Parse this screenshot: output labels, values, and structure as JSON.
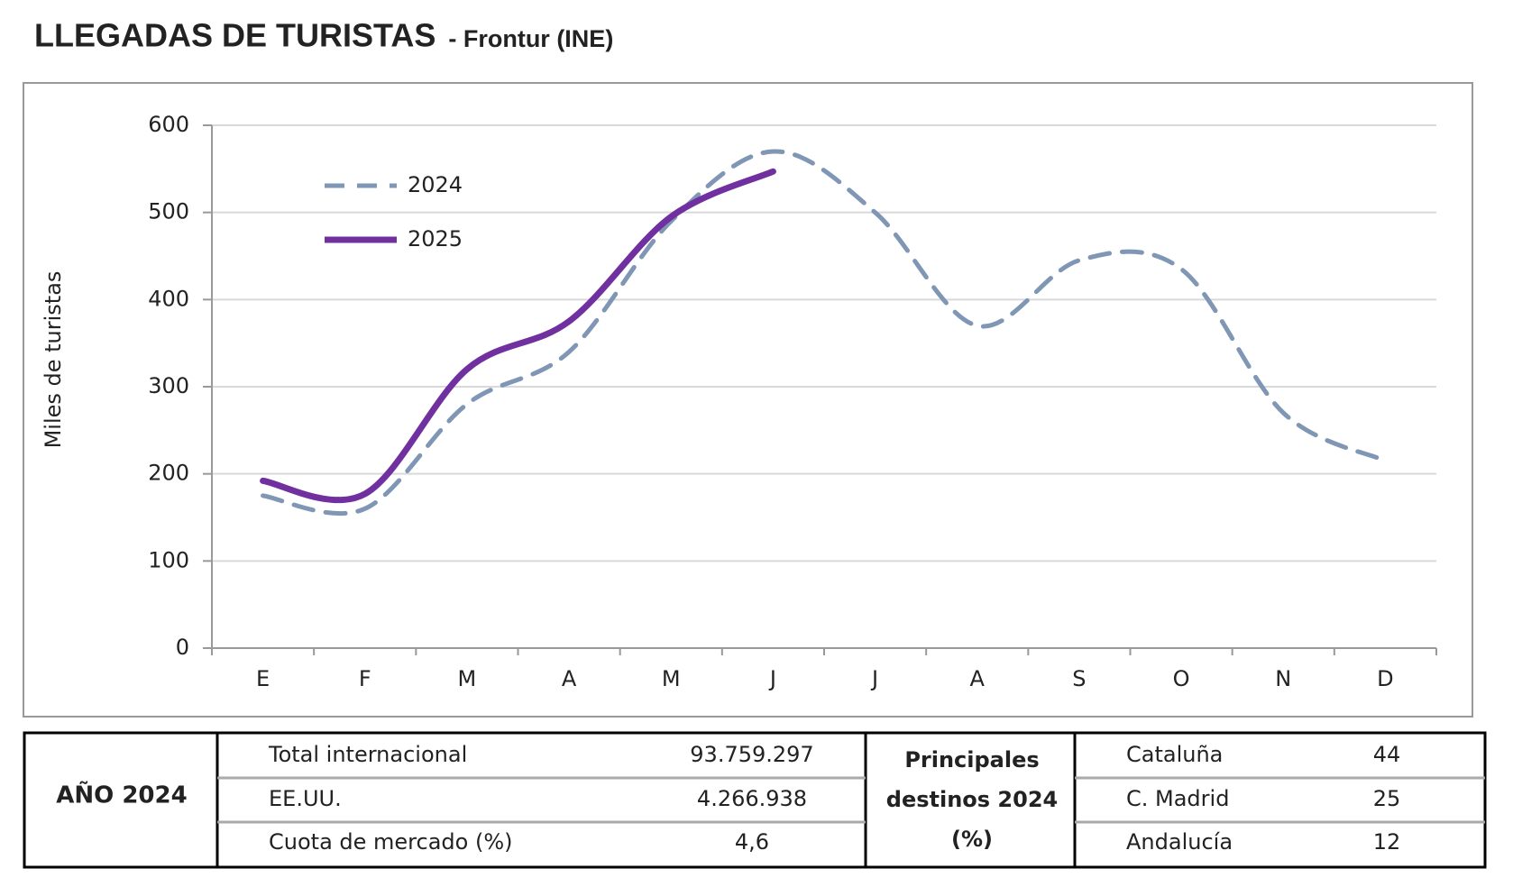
{
  "chart_data": {
    "type": "line",
    "title": "LLEGADAS DE TURISTAS",
    "subtitle": "- Frontur (INE)",
    "y_label": "Miles de turistas",
    "categories": [
      "E",
      "F",
      "M",
      "A",
      "M",
      "J",
      "J",
      "A",
      "S",
      "O",
      "N",
      "D"
    ],
    "series": [
      {
        "name": "2024",
        "color": "#7f96b5",
        "dashed": true,
        "values": [
          175,
          160,
          280,
          340,
          490,
          570,
          500,
          370,
          445,
          435,
          270,
          215
        ]
      },
      {
        "name": "2025",
        "color": "#7030a0",
        "dashed": false,
        "values": [
          192,
          177,
          320,
          375,
          495,
          547,
          null,
          null,
          null,
          null,
          null,
          null
        ]
      }
    ],
    "ylim": [
      0,
      600
    ],
    "yticks": [
      0,
      100,
      200,
      300,
      400,
      500,
      600
    ],
    "grid": true,
    "legend": "top-left"
  },
  "table": {
    "year_label": "AÑO 2024",
    "rows": [
      [
        "Total internacional",
        "93.759.297"
      ],
      [
        "EE.UU.",
        "4.266.938"
      ],
      [
        "Cuota de mercado (%)",
        "4,6"
      ]
    ],
    "destinations_label": [
      "Principales",
      "destinos 2024",
      "(%)"
    ],
    "destinations": [
      [
        "Cataluña",
        "44"
      ],
      [
        "C. Madrid",
        "25"
      ],
      [
        "Andalucía",
        "12"
      ]
    ]
  }
}
